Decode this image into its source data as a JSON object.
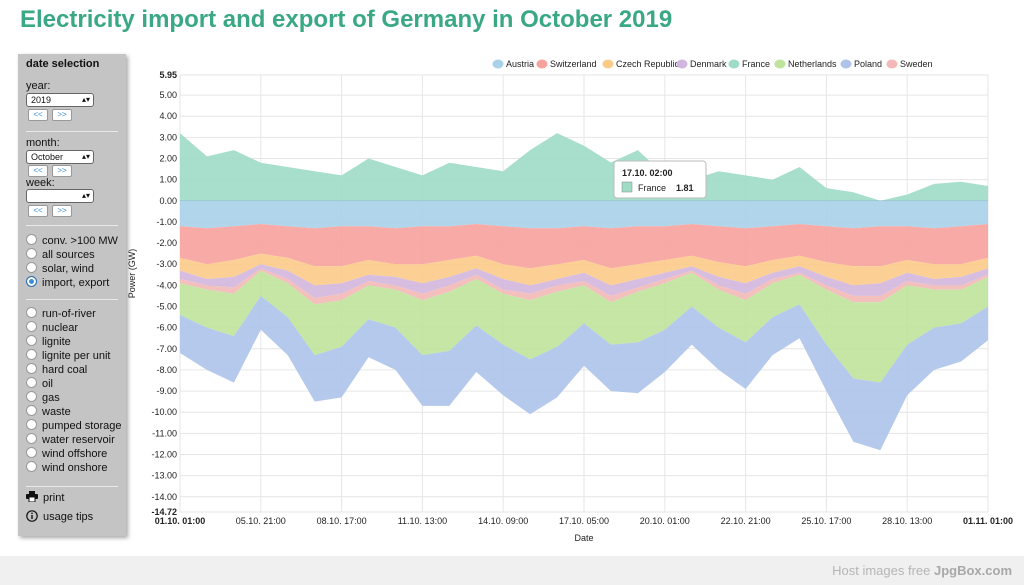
{
  "page": {
    "title": "Electricity import and export of Germany in October 2019"
  },
  "sidebar": {
    "title": "date selection",
    "year_label": "year:",
    "year_value": "2019",
    "month_label": "month:",
    "month_value": "October",
    "week_label": "week:",
    "week_value": "",
    "prev_label": "<<",
    "next_label": ">>",
    "views": [
      {
        "label": "conv. >100 MW",
        "selected": false
      },
      {
        "label": "all sources",
        "selected": false
      },
      {
        "label": "solar, wind",
        "selected": false
      },
      {
        "label": "import, export",
        "selected": true
      }
    ],
    "sources": [
      "run-of-river",
      "nuclear",
      "lignite",
      "lignite per unit",
      "hard coal",
      "oil",
      "gas",
      "waste",
      "pumped storage",
      "water reservoir",
      "wind offshore",
      "wind onshore"
    ],
    "print_label": "print",
    "tips_label": "usage tips"
  },
  "tooltip": {
    "title": "17.10. 02:00",
    "series": "France",
    "value": "1.81"
  },
  "footer": {
    "text": "Host images free ",
    "brand": "JpgBox.com"
  },
  "chart_data": {
    "type": "area",
    "title": "Electricity import and export of Germany in October 2019",
    "xlabel": "Date",
    "ylabel": "Power (GW)",
    "ylim": [
      -14.72,
      5.95
    ],
    "y_ticks": [
      "5.95",
      "5.00",
      "4.00",
      "3.00",
      "2.00",
      "1.00",
      "0.00",
      "-1.00",
      "-2.00",
      "-3.00",
      "-4.00",
      "-5.00",
      "-6.00",
      "-7.00",
      "-8.00",
      "-9.00",
      "-10.00",
      "-11.00",
      "-12.00",
      "-13.00",
      "-14.00",
      "-14.72"
    ],
    "x_ticks": [
      "01.10. 01:00",
      "05.10. 21:00",
      "08.10. 17:00",
      "11.10. 13:00",
      "14.10. 09:00",
      "17.10. 05:00",
      "20.10. 01:00",
      "22.10. 21:00",
      "25.10. 17:00",
      "28.10. 13:00",
      "01.11. 01:00"
    ],
    "legend_position": "top",
    "grid": true,
    "x": [
      "01.10.",
      "02.10.",
      "03.10.",
      "04.10.",
      "05.10.",
      "06.10.",
      "07.10.",
      "08.10.",
      "09.10.",
      "10.10.",
      "11.10.",
      "12.10.",
      "13.10.",
      "14.10.",
      "15.10.",
      "16.10.",
      "17.10.",
      "18.10.",
      "19.10.",
      "20.10.",
      "21.10.",
      "22.10.",
      "23.10.",
      "24.10.",
      "25.10.",
      "26.10.",
      "27.10.",
      "28.10.",
      "29.10.",
      "30.10.",
      "31.10."
    ],
    "series": [
      {
        "name": "Austria",
        "color": "#a9d2ea",
        "values": [
          -1.2,
          -1.3,
          -1.2,
          -1.1,
          -1.2,
          -1.3,
          -1.2,
          -1.2,
          -1.3,
          -1.2,
          -1.2,
          -1.1,
          -1.2,
          -1.3,
          -1.3,
          -1.2,
          -1.3,
          -1.2,
          -1.2,
          -1.1,
          -1.2,
          -1.3,
          -1.2,
          -1.1,
          -1.2,
          -1.3,
          -1.2,
          -1.2,
          -1.3,
          -1.2,
          -1.1
        ]
      },
      {
        "name": "Switzerland",
        "color": "#f7a29c",
        "values": [
          -1.5,
          -1.7,
          -1.6,
          -1.4,
          -1.5,
          -1.8,
          -1.9,
          -1.6,
          -1.7,
          -1.8,
          -1.6,
          -1.5,
          -1.8,
          -1.9,
          -1.7,
          -1.6,
          -1.9,
          -1.8,
          -1.6,
          -1.5,
          -1.7,
          -1.8,
          -1.6,
          -1.5,
          -1.7,
          -1.8,
          -1.9,
          -1.6,
          -1.7,
          -1.8,
          -1.6
        ]
      },
      {
        "name": "Czech Republic",
        "color": "#fccb88",
        "values": [
          -0.6,
          -0.7,
          -0.8,
          -0.5,
          -0.6,
          -0.9,
          -0.8,
          -0.7,
          -0.6,
          -0.9,
          -0.8,
          -0.6,
          -0.7,
          -0.8,
          -0.7,
          -0.6,
          -0.8,
          -0.7,
          -0.6,
          -0.5,
          -0.7,
          -0.8,
          -0.6,
          -0.5,
          -0.7,
          -0.9,
          -0.8,
          -0.6,
          -0.7,
          -0.6,
          -0.5
        ]
      },
      {
        "name": "Denmark",
        "color": "#d3b6dd",
        "values": [
          -0.4,
          -0.3,
          -0.5,
          -0.2,
          -0.4,
          -0.6,
          -0.5,
          -0.3,
          -0.4,
          -0.5,
          -0.4,
          -0.3,
          -0.5,
          -0.4,
          -0.3,
          -0.4,
          -0.5,
          -0.4,
          -0.3,
          -0.2,
          -0.4,
          -0.5,
          -0.3,
          -0.3,
          -0.4,
          -0.5,
          -0.6,
          -0.4,
          -0.3,
          -0.4,
          -0.3
        ]
      },
      {
        "name": "France",
        "color": "#9fdcc6",
        "values": [
          3.2,
          2.1,
          2.4,
          1.8,
          1.6,
          1.4,
          1.2,
          2.0,
          1.6,
          1.2,
          1.8,
          1.6,
          1.4,
          2.4,
          3.2,
          2.6,
          1.81,
          2.4,
          1.2,
          1.0,
          1.4,
          1.2,
          1.0,
          1.6,
          0.6,
          0.4,
          0.0,
          0.3,
          0.8,
          0.9,
          0.7
        ]
      },
      {
        "name": "Netherlands",
        "color": "#bfe39b",
        "values": [
          -1.5,
          -1.8,
          -2.0,
          -1.2,
          -1.6,
          -2.4,
          -2.2,
          -1.6,
          -1.8,
          -2.6,
          -2.8,
          -2.2,
          -2.4,
          -2.8,
          -2.6,
          -1.8,
          -2.0,
          -2.4,
          -2.2,
          -1.6,
          -1.8,
          -2.0,
          -1.6,
          -1.4,
          -2.6,
          -3.6,
          -3.8,
          -2.8,
          -1.8,
          -1.6,
          -1.4
        ]
      },
      {
        "name": "Poland",
        "color": "#adc3ea",
        "values": [
          -1.8,
          -2.0,
          -2.2,
          -1.6,
          -1.8,
          -2.2,
          -2.4,
          -1.8,
          -2.0,
          -2.4,
          -2.6,
          -2.2,
          -2.4,
          -2.6,
          -2.4,
          -2.0,
          -2.2,
          -2.4,
          -2.0,
          -1.8,
          -2.0,
          -2.2,
          -1.8,
          -1.6,
          -2.2,
          -3.0,
          -3.2,
          -2.4,
          -2.0,
          -1.8,
          -1.6
        ]
      },
      {
        "name": "Sweden",
        "color": "#f2b9b7",
        "values": [
          -0.2,
          -0.2,
          -0.3,
          -0.1,
          -0.2,
          -0.3,
          -0.3,
          -0.2,
          -0.2,
          -0.3,
          -0.3,
          -0.2,
          -0.2,
          -0.3,
          -0.3,
          -0.2,
          -0.3,
          -0.2,
          -0.2,
          -0.1,
          -0.2,
          -0.3,
          -0.2,
          -0.1,
          -0.2,
          -0.3,
          -0.3,
          -0.2,
          -0.2,
          -0.2,
          -0.1
        ]
      }
    ]
  }
}
